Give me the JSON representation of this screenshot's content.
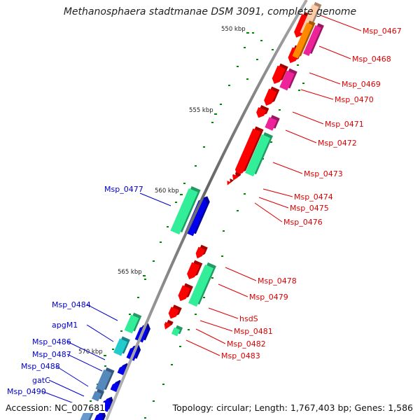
{
  "title": "Methanosphaera stadtmanae DSM 3091, complete genome",
  "footer": {
    "accession": "Accession: NC_007681",
    "topology": "Topology: circular; Length: 1,767,403 bp; Genes: 1,586"
  },
  "colors": {
    "forward_cds": "#ff0000",
    "reverse_cds": "#0000ee",
    "rna_green": "#33ee99",
    "cyan": "#22cccc",
    "magenta": "#ee2299",
    "orange": "#ff8800",
    "backbone": "#777777",
    "tick_dot": "#008800",
    "forward_label": "#dd0000",
    "reverse_label": "#0000cc"
  },
  "ticks": [
    "550 kbp",
    "555 kbp",
    "560 kbp",
    "565 kbp",
    "570 kbp"
  ],
  "forward_labels": [
    "Msp_0467",
    "Msp_0468",
    "Msp_0469",
    "Msp_0470",
    "Msp_0471",
    "Msp_0472",
    "Msp_0473",
    "Msp_0474",
    "Msp_0475",
    "Msp_0476",
    "Msp_0478",
    "Msp_0479",
    "hsdS",
    "Msp_0481",
    "Msp_0482",
    "Msp_0483"
  ],
  "reverse_labels": [
    "Msp_0477",
    "Msp_0484",
    "apgM1",
    "Msp_0486",
    "Msp_0487",
    "Msp_0488",
    "gatC",
    "Msp_0490"
  ]
}
